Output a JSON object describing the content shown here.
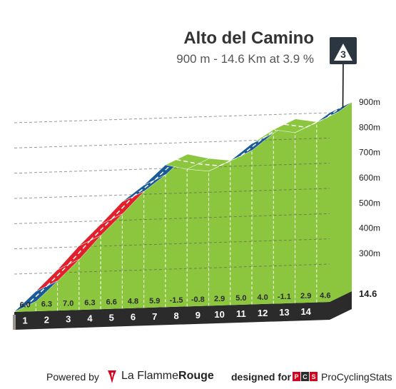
{
  "header": {
    "title": "Alto del Camino",
    "subtitle": "900 m - 14.6 Km at 3.9 %",
    "category": "3"
  },
  "footer": {
    "powered_by": "Powered by",
    "brand_prefix": "La Flamme",
    "brand_suffix": "Rouge",
    "designed_for": "designed for",
    "pcs_logo": "PCS",
    "pcs_name": "ProCyclingStats"
  },
  "chart_data": {
    "type": "area",
    "title": "Alto del Camino",
    "subtitle": "900 m - 14.6 Km at 3.9 %",
    "xlabel": "",
    "ylabel": "",
    "x_ticks": [
      "1",
      "2",
      "3",
      "4",
      "5",
      "6",
      "7",
      "8",
      "9",
      "10",
      "11",
      "12",
      "13",
      "14"
    ],
    "final_km_label": "14.6",
    "y_ticks": [
      300,
      400,
      500,
      600,
      700,
      800,
      900
    ],
    "y_tick_labels": [
      "300m",
      "400m",
      "500m",
      "600m",
      "700m",
      "800m",
      "900m"
    ],
    "ylim": [
      150,
      900
    ],
    "xlim": [
      0,
      14.6
    ],
    "km_gradients": [
      6.0,
      6.3,
      7.0,
      6.3,
      6.6,
      4.8,
      5.9,
      -1.5,
      -0.8,
      2.9,
      5.0,
      4.0,
      -1.1,
      2.9,
      4.6
    ],
    "gradient_labels": [
      "6.0",
      "6.3",
      "7.0",
      "6.3",
      "6.6",
      "4.8",
      "5.9",
      "-1.5",
      "-0.8",
      "2.9",
      "5.0",
      "4.0",
      "-1.1",
      "2.9",
      "4.6"
    ],
    "gradient_colors": {
      "easy": "#8cc63f",
      "medium": "#1a5a96",
      "hard": "#e2202c",
      "descent": "#8cc63f"
    },
    "km_band_color": "#2b2b2b",
    "grid": true
  }
}
